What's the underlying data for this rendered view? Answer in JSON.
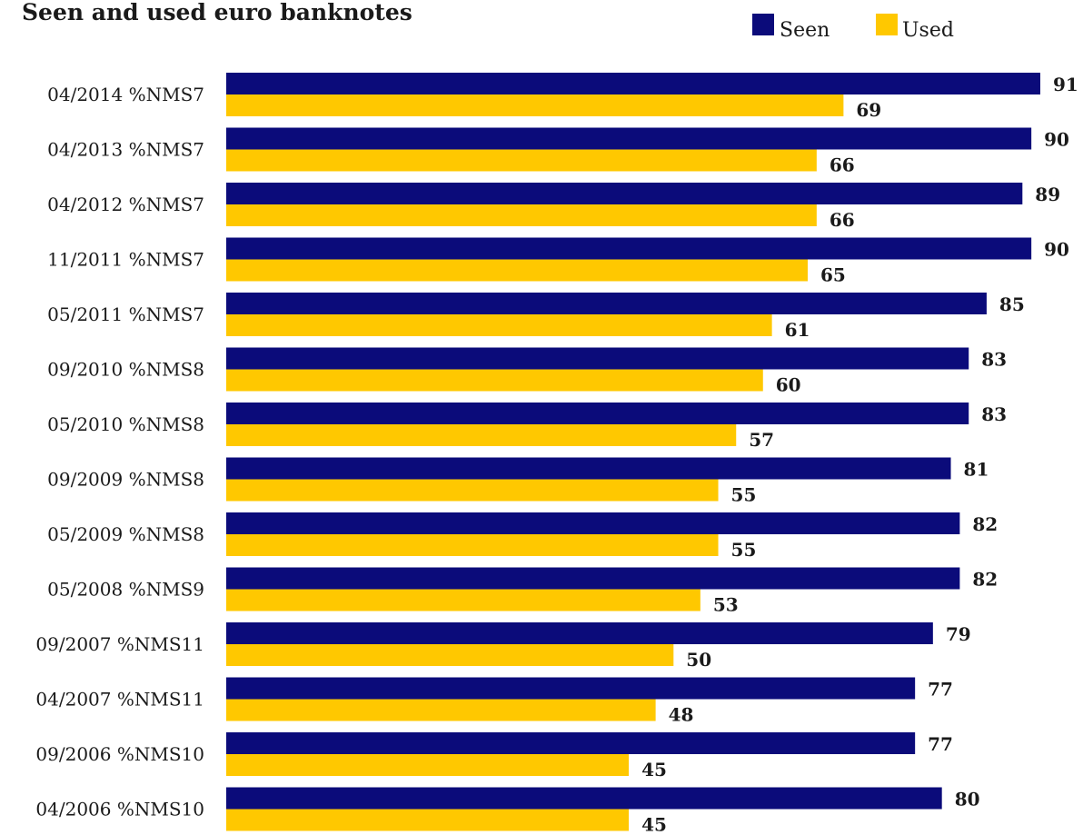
{
  "colors": {
    "seen": "#0b0b7a",
    "used": "#ffc800"
  },
  "legend": {
    "seen_label": "Seen",
    "used_label": "Used"
  },
  "chart_data": {
    "type": "bar",
    "orientation": "horizontal",
    "title": "Seen and used euro banknotes",
    "xlabel": "",
    "ylabel": "",
    "xlim": [
      0,
      91
    ],
    "grid": false,
    "legend_position": "top-right",
    "categories": [
      "04/2014 %NMS7",
      "04/2013 %NMS7",
      "04/2012 %NMS7",
      "11/2011 %NMS7",
      "05/2011 %NMS7",
      "09/2010 %NMS8",
      "05/2010 %NMS8",
      "09/2009 %NMS8",
      "05/2009 %NMS8",
      "05/2008 %NMS9",
      "09/2007 %NMS11",
      "04/2007 %NMS11",
      "09/2006 %NMS10",
      "04/2006 %NMS10"
    ],
    "series": [
      {
        "name": "Seen",
        "values": [
          91,
          90,
          89,
          90,
          85,
          83,
          83,
          81,
          82,
          82,
          79,
          77,
          77,
          80
        ]
      },
      {
        "name": "Used",
        "values": [
          69,
          66,
          66,
          65,
          61,
          60,
          57,
          55,
          55,
          53,
          50,
          48,
          45,
          45
        ]
      }
    ]
  }
}
